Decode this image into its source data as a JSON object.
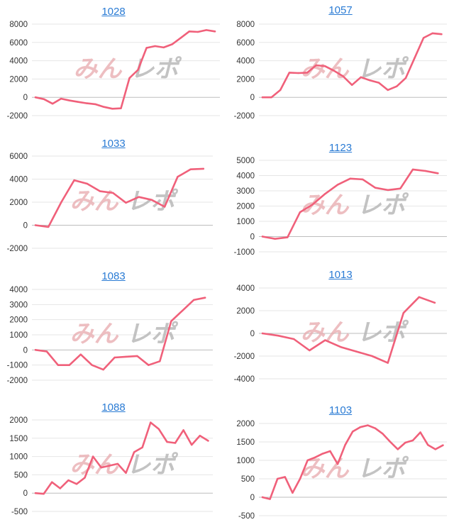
{
  "watermark": {
    "part1": "みん",
    "part2": "レポ"
  },
  "colors": {
    "line": "#f0607a",
    "grid": "#e6e6e6",
    "zero_line": "#bdbdbd",
    "title": "#2a7bd4",
    "tick_text": "#333333"
  },
  "chart_data": [
    {
      "type": "line",
      "title": "1028",
      "ylim": [
        -2000,
        8000
      ],
      "yticks": [
        -2000,
        0,
        2000,
        4000,
        6000,
        8000
      ],
      "values": [
        0,
        -200,
        -700,
        -150,
        -350,
        -500,
        -650,
        -750,
        -1050,
        -1250,
        -1200,
        2100,
        3000,
        5400,
        5600,
        5450,
        5800,
        6500,
        7200,
        7150,
        7350,
        7200
      ]
    },
    {
      "type": "line",
      "title": "1057",
      "ylim": [
        -2000,
        8000
      ],
      "yticks": [
        -2000,
        0,
        2000,
        4000,
        6000,
        8000
      ],
      "values": [
        0,
        0,
        800,
        2700,
        2650,
        2700,
        3500,
        3400,
        2900,
        2300,
        1350,
        2200,
        1850,
        1600,
        800,
        1200,
        2100,
        4300,
        6500,
        7000,
        6900
      ]
    },
    {
      "type": "line",
      "title": "1033",
      "ylim": [
        -2000,
        6000
      ],
      "yticks": [
        -2000,
        0,
        2000,
        4000,
        6000
      ],
      "values": [
        0,
        -150,
        2000,
        3900,
        3600,
        2950,
        2800,
        1950,
        2450,
        2200,
        1600,
        4200,
        4850,
        4900
      ]
    },
    {
      "type": "line",
      "title": "1123",
      "ylim": [
        -1000,
        5000
      ],
      "yticks": [
        -1000,
        0,
        1000,
        2000,
        3000,
        4000,
        5000
      ],
      "values": [
        0,
        -150,
        -50,
        1600,
        2100,
        2800,
        3400,
        3800,
        3750,
        3200,
        3050,
        3150,
        4400,
        4300,
        4150
      ]
    },
    {
      "type": "line",
      "title": "1083",
      "ylim": [
        -2000,
        4000
      ],
      "yticks": [
        -2000,
        -1000,
        0,
        1000,
        2000,
        3000,
        4000
      ],
      "values": [
        0,
        -100,
        -1000,
        -1000,
        -300,
        -1000,
        -1300,
        -500,
        -450,
        -400,
        -1000,
        -750,
        1900,
        2600,
        3300,
        3450
      ]
    },
    {
      "type": "line",
      "title": "1013",
      "ylim": [
        -4000,
        4000
      ],
      "yticks": [
        -4000,
        -2000,
        0,
        2000,
        4000
      ],
      "values": [
        0,
        -200,
        -500,
        -1500,
        -600,
        -1200,
        -1600,
        -2000,
        -2600,
        1800,
        3200,
        2700
      ]
    },
    {
      "type": "line",
      "title": "1088",
      "ylim": [
        -500,
        2000
      ],
      "yticks": [
        -500,
        0,
        500,
        1000,
        1500,
        2000
      ],
      "values": [
        0,
        -20,
        300,
        130,
        350,
        250,
        420,
        1000,
        700,
        750,
        800,
        550,
        1120,
        1250,
        1930,
        1750,
        1400,
        1370,
        1720,
        1320,
        1570,
        1430
      ]
    },
    {
      "type": "line",
      "title": "1103",
      "ylim": [
        -500,
        2000
      ],
      "yticks": [
        -500,
        0,
        500,
        1000,
        1500,
        2000
      ],
      "values": [
        0,
        -50,
        500,
        550,
        120,
        500,
        1000,
        1080,
        1180,
        1250,
        900,
        1420,
        1780,
        1900,
        1950,
        1870,
        1720,
        1500,
        1300,
        1480,
        1540,
        1760,
        1420,
        1300,
        1410
      ]
    }
  ]
}
